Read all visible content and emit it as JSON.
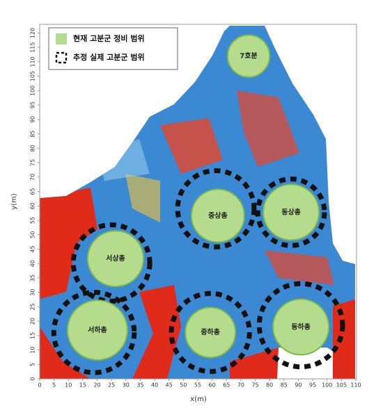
{
  "chart_data": {
    "type": "bubble",
    "xlabel": "x(m)",
    "ylabel": "y(m)",
    "xlim": [
      0,
      110
    ],
    "ylim": [
      0,
      123
    ],
    "xticks": [
      0,
      5,
      10,
      15,
      20,
      25,
      30,
      35,
      40,
      45,
      50,
      55,
      60,
      65,
      70,
      75,
      80,
      85,
      90,
      95,
      100,
      105,
      110
    ],
    "yticks": [
      0,
      5,
      10,
      15,
      20,
      25,
      30,
      35,
      40,
      45,
      50,
      55,
      60,
      65,
      70,
      75,
      80,
      85,
      90,
      95,
      100,
      105,
      110,
      115,
      120
    ],
    "legend": [
      {
        "name": "현재 고분군 정비 범위",
        "color": "#b5dc8c"
      },
      {
        "name": "추정 실제 고분군 범위",
        "color": "#111111"
      }
    ],
    "legend_position": "upper left",
    "mounds": {
      "names": [
        "7호분",
        "중상총",
        "동상총",
        "서상총",
        "서하총",
        "중하총",
        "동하총"
      ],
      "x": [
        72.7,
        62,
        87.5,
        26.4,
        20.1,
        59.4,
        90.9
      ],
      "y": [
        112,
        56.6,
        57.8,
        41.7,
        16.9,
        16.1,
        18
      ],
      "r": [
        7.3,
        9.2,
        9.7,
        9.7,
        10.4,
        8.7,
        9.7
      ]
    },
    "estimated": {
      "x": [
        61.3,
        87.5,
        25,
        18.9,
        59.4,
        90.9
      ],
      "y": [
        59,
        57.8,
        40.2,
        16.1,
        16.1,
        18.6
      ],
      "r": [
        13.3,
        11.6,
        13.3,
        14,
        13.6,
        14.5
      ]
    }
  }
}
